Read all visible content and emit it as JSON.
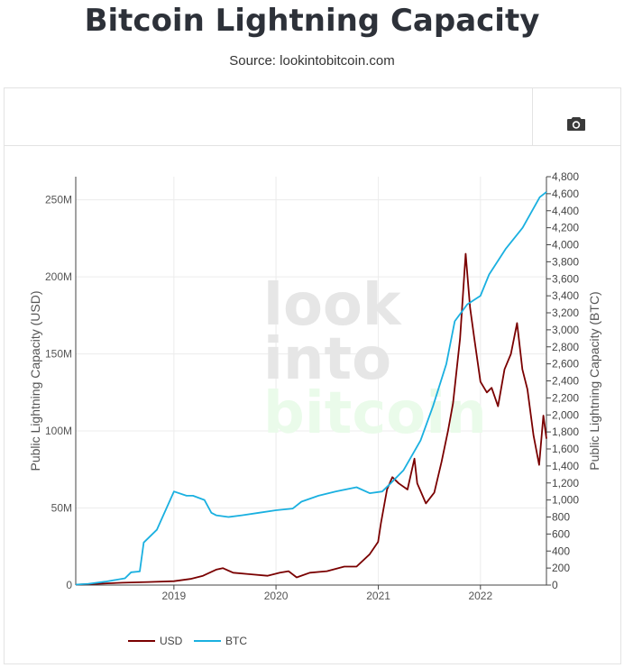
{
  "header": {
    "title": "Bitcoin Lightning Capacity",
    "subtitle": "Source: lookintobitcoin.com"
  },
  "toolbar": {
    "camera_icon": "camera-icon"
  },
  "watermark": {
    "line1": "look",
    "line2": "into",
    "line3": "bitcoin"
  },
  "colors": {
    "usd": "#7a0000",
    "btc": "#1ab0e0",
    "watermark_gray": "#e6e6e6",
    "watermark_green": "#eafbea"
  },
  "chart_data": {
    "type": "line",
    "title": "Bitcoin Lightning Capacity",
    "xlabel": "",
    "ylabel_left": "Public Lightning Capacity (USD)",
    "ylabel_right": "Public Lightning Capacity (BTC)",
    "x_ticks": [
      "2019",
      "2020",
      "2021",
      "2022"
    ],
    "y_left_ticks": [
      "0",
      "50M",
      "100M",
      "150M",
      "200M",
      "250M"
    ],
    "y_right_ticks": [
      "0",
      "200",
      "400",
      "600",
      "800",
      "1,000",
      "1,200",
      "1,400",
      "1,600",
      "1,800",
      "2,000",
      "2,200",
      "2,400",
      "2,600",
      "2,800",
      "3,000",
      "3,200",
      "3,400",
      "3,600",
      "3,800",
      "4,000",
      "4,200",
      "4,400",
      "4,600",
      "4,800"
    ],
    "x_range": [
      "2018-01-15",
      "2022-08-25"
    ],
    "y_left_range": [
      0,
      265000000
    ],
    "y_right_range": [
      0,
      4800
    ],
    "grid": true,
    "legend_position": "bottom-left",
    "series": [
      {
        "name": "USD",
        "axis": "left",
        "x": [
          "2018-01-15",
          "2018-04-01",
          "2018-07-01",
          "2018-10-01",
          "2019-01-01",
          "2019-03-01",
          "2019-04-15",
          "2019-06-01",
          "2019-06-25",
          "2019-08-01",
          "2019-10-01",
          "2019-12-01",
          "2020-01-15",
          "2020-02-15",
          "2020-03-15",
          "2020-05-01",
          "2020-07-01",
          "2020-09-01",
          "2020-10-15",
          "2020-12-01",
          "2020-12-31",
          "2021-01-10",
          "2021-02-01",
          "2021-02-20",
          "2021-03-15",
          "2021-04-15",
          "2021-05-10",
          "2021-05-20",
          "2021-06-20",
          "2021-07-20",
          "2021-08-15",
          "2021-09-07",
          "2021-09-25",
          "2021-10-20",
          "2021-11-09",
          "2021-11-25",
          "2021-12-10",
          "2022-01-01",
          "2022-01-24",
          "2022-02-10",
          "2022-03-05",
          "2022-03-28",
          "2022-04-20",
          "2022-05-12",
          "2022-05-31",
          "2022-06-18",
          "2022-07-10",
          "2022-07-30",
          "2022-08-14",
          "2022-08-25"
        ],
        "values": [
          0.3,
          0.8,
          1.5,
          2,
          2.5,
          4,
          6,
          10,
          11,
          8,
          7,
          6,
          8,
          9,
          5,
          8,
          9,
          12,
          12,
          20,
          28,
          40,
          62,
          70,
          66,
          62,
          82,
          66,
          53,
          60,
          80,
          100,
          118,
          160,
          215,
          180,
          160,
          132,
          125,
          128,
          116,
          140,
          150,
          170,
          140,
          127,
          97,
          78,
          110,
          95
        ],
        "unit": "USD"
      },
      {
        "name": "BTC",
        "axis": "right",
        "x": [
          "2018-01-15",
          "2018-03-01",
          "2018-05-01",
          "2018-07-10",
          "2018-08-01",
          "2018-09-01",
          "2018-09-15",
          "2018-11-01",
          "2019-01-01",
          "2019-02-15",
          "2019-03-10",
          "2019-04-20",
          "2019-05-15",
          "2019-06-01",
          "2019-07-15",
          "2019-09-01",
          "2019-11-01",
          "2020-01-01",
          "2020-03-01",
          "2020-04-01",
          "2020-06-01",
          "2020-08-01",
          "2020-09-15",
          "2020-10-15",
          "2020-12-01",
          "2021-01-15",
          "2021-02-15",
          "2021-04-01",
          "2021-06-01",
          "2021-07-15",
          "2021-09-01",
          "2021-10-01",
          "2021-11-15",
          "2022-01-01",
          "2022-02-01",
          "2022-04-01",
          "2022-06-01",
          "2022-08-01",
          "2022-08-25"
        ],
        "values": [
          5,
          15,
          40,
          80,
          150,
          160,
          500,
          650,
          1100,
          1050,
          1050,
          1000,
          850,
          820,
          800,
          820,
          850,
          880,
          900,
          980,
          1050,
          1100,
          1130,
          1150,
          1080,
          1100,
          1200,
          1350,
          1700,
          2100,
          2600,
          3100,
          3300,
          3400,
          3650,
          3950,
          4200,
          4560,
          4620
        ],
        "unit": "BTC"
      }
    ]
  }
}
